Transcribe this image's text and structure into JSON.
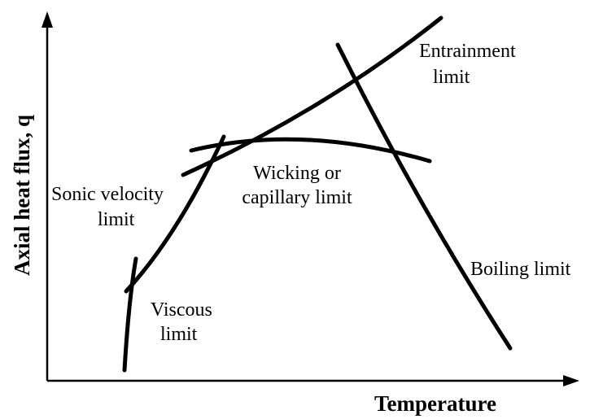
{
  "axes": {
    "x_label": "Temperature",
    "y_label": "Axial heat flux, q"
  },
  "curves": [
    {
      "lines": [
        "Entrainment",
        "limit"
      ]
    },
    {
      "lines": [
        "Wicking or",
        "capillary limit"
      ]
    },
    {
      "lines": [
        "Sonic velocity",
        "limit"
      ]
    },
    {
      "lines": [
        "Boiling limit"
      ]
    },
    {
      "lines": [
        "Viscous",
        "limit"
      ]
    }
  ]
}
